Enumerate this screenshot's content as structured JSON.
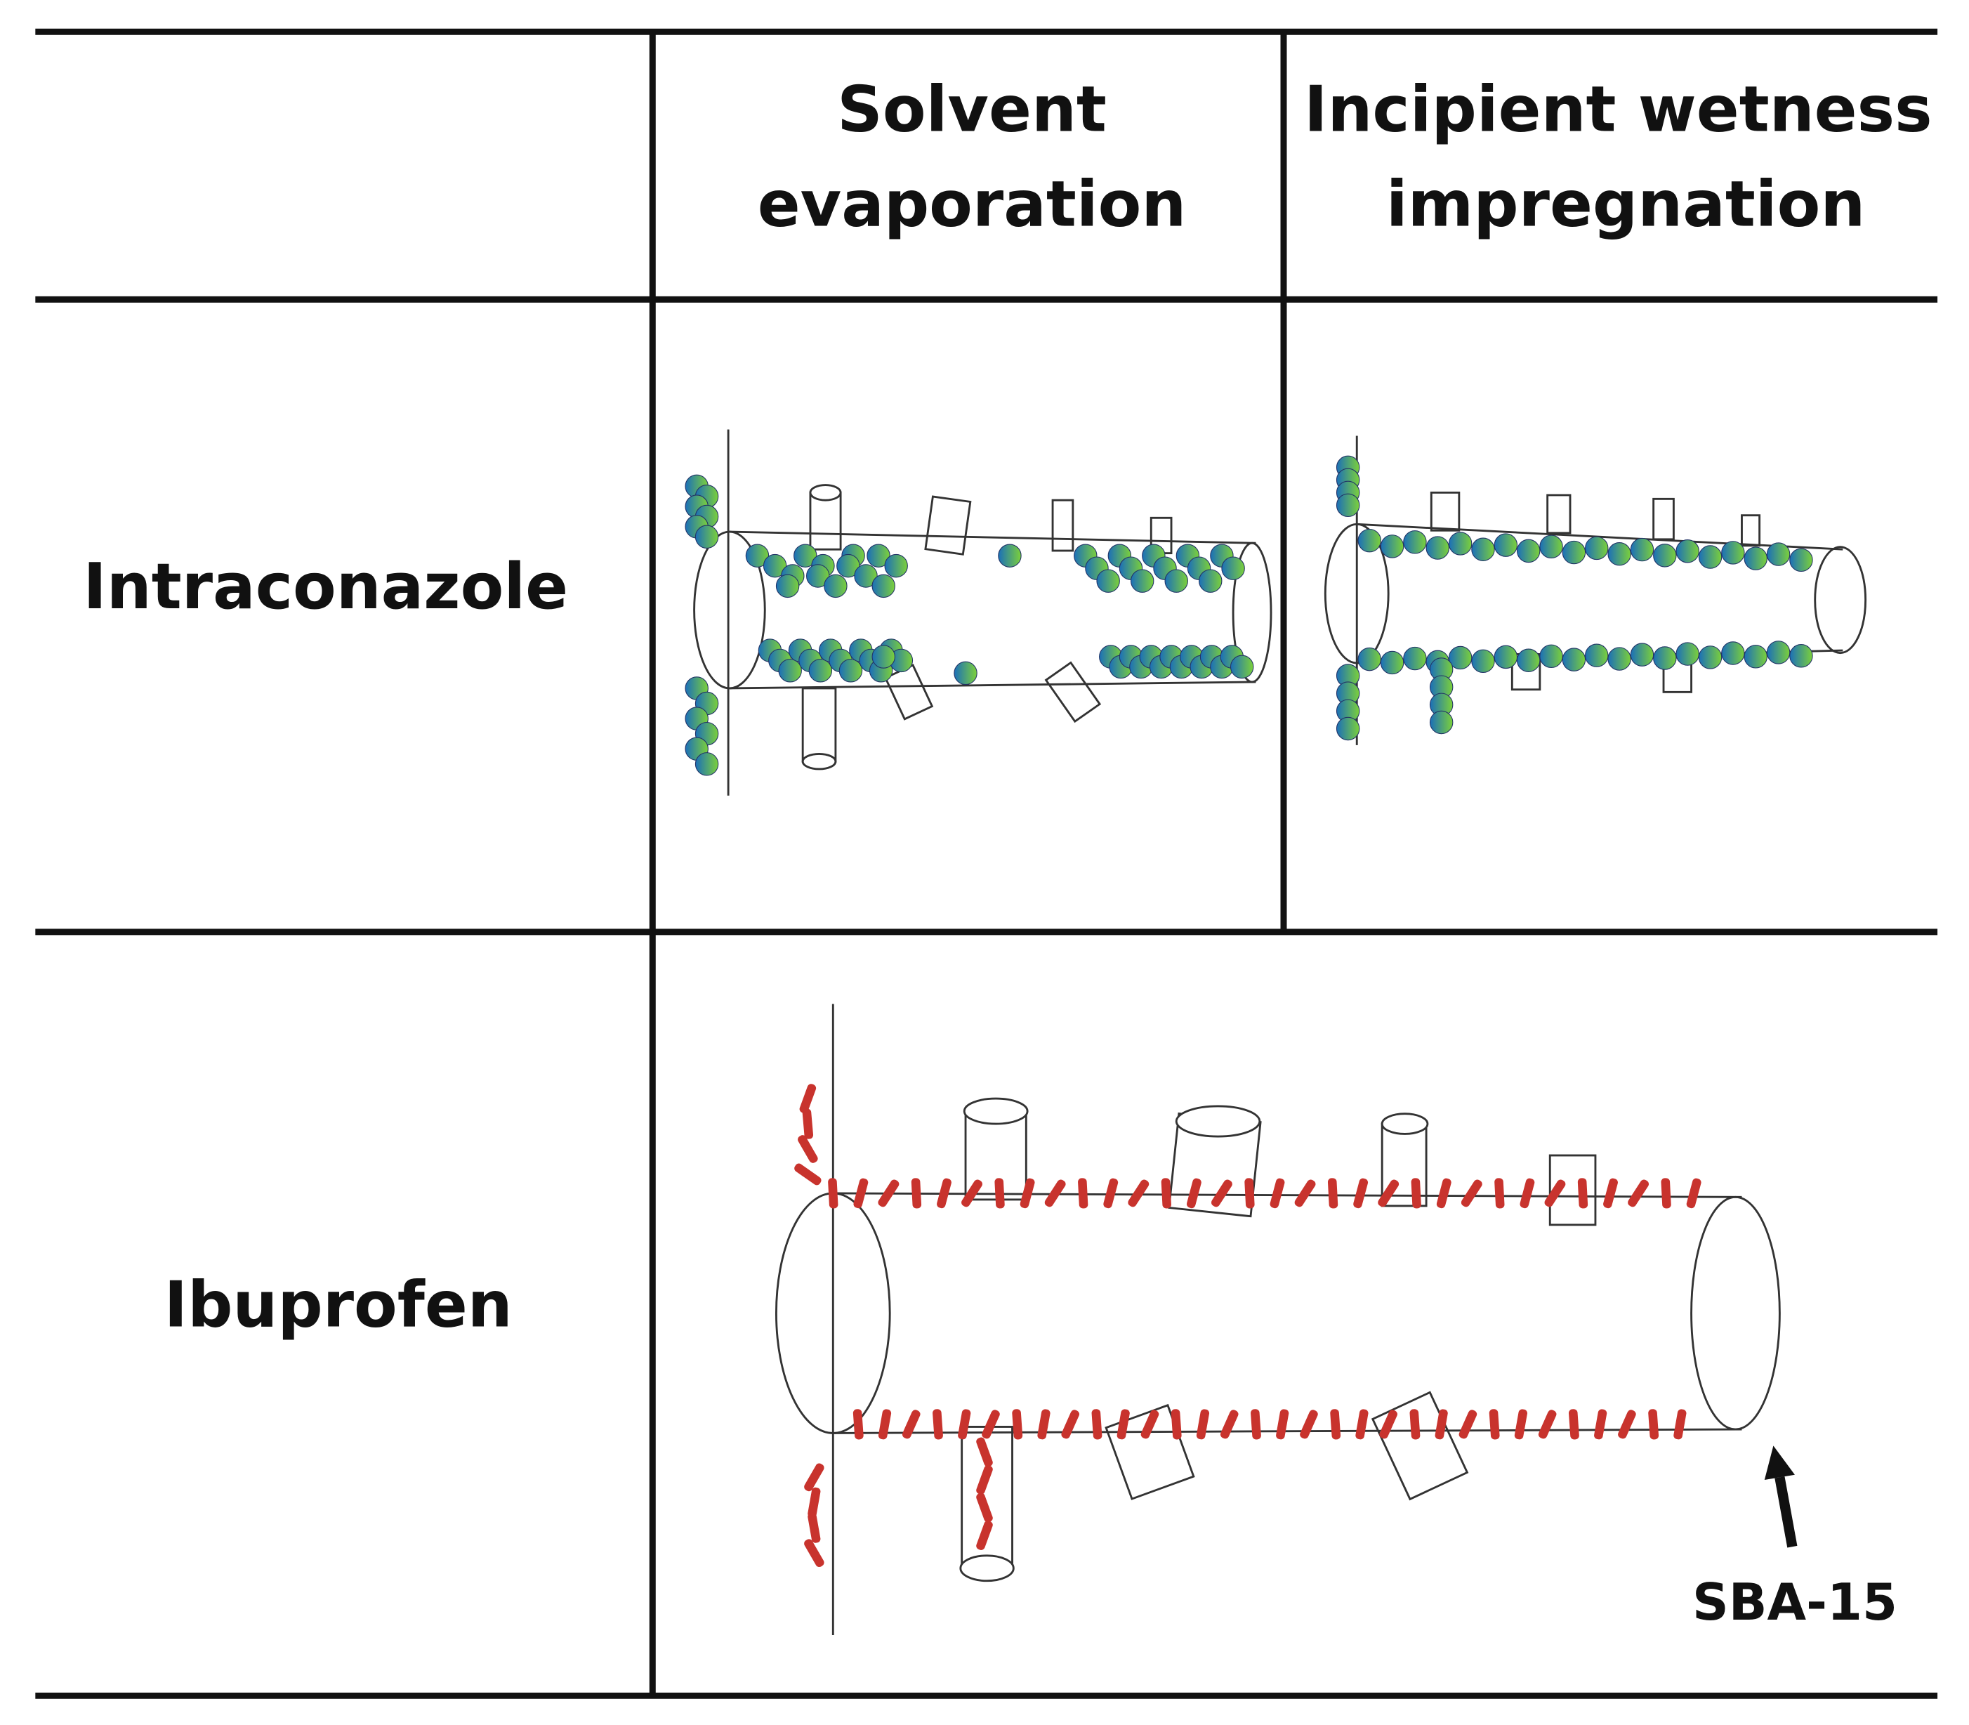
{
  "table": {
    "header": [
      {
        "lines": [
          "Solvent",
          "evaporation"
        ]
      },
      {
        "lines": [
          "Incipient wetness",
          "impregnation"
        ]
      }
    ],
    "rows": [
      {
        "label": "Intraconazole"
      },
      {
        "label": "Ibuprofen"
      }
    ]
  },
  "annotation": "SBA-15"
}
